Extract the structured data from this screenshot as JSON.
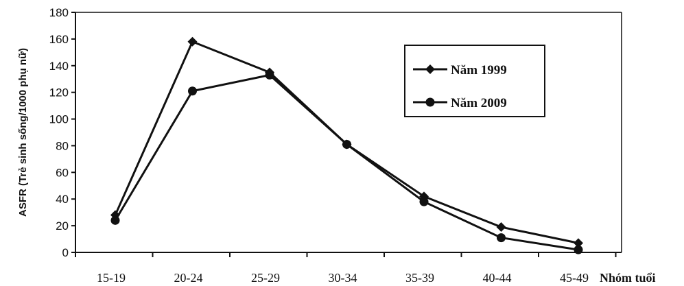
{
  "chart_data": {
    "type": "line",
    "categories": [
      "15-19",
      "20-24",
      "25-29",
      "30-34",
      "35-39",
      "40-44",
      "45-49"
    ],
    "series": [
      {
        "name": "Năm 1999",
        "marker": "diamond",
        "values": [
          28,
          158,
          135,
          81,
          42,
          19,
          7
        ]
      },
      {
        "name": "Năm 2009",
        "marker": "circle",
        "values": [
          24,
          121,
          133,
          81,
          38,
          11,
          2
        ]
      }
    ],
    "xlabel": "Nhóm tuổi",
    "ylabel": "ASFR (Trẻ sinh sống/1000 phụ nữ)",
    "ylim": [
      0,
      180
    ],
    "yticks": [
      "0",
      "20",
      "40",
      "60",
      "80",
      "100",
      "120",
      "140",
      "160",
      "180"
    ],
    "grid": false,
    "legend_position": "top-right",
    "line_color": "#111111"
  }
}
